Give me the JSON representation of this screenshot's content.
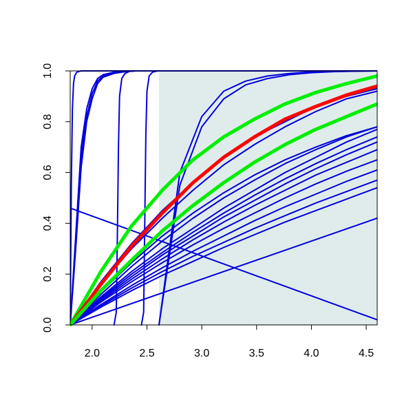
{
  "chart_data": {
    "type": "line",
    "title": "",
    "xlabel": "",
    "ylabel": "",
    "xlim": [
      1.8,
      4.6
    ],
    "ylim": [
      0.0,
      1.0
    ],
    "x_ticks": [
      2.0,
      2.5,
      3.0,
      3.5,
      4.0,
      4.5
    ],
    "x_tick_labels": [
      "2.0",
      "2.5",
      "3.0",
      "3.5",
      "4.0",
      "4.5"
    ],
    "y_ticks": [
      0.0,
      0.2,
      0.4,
      0.6,
      0.8,
      1.0
    ],
    "y_tick_labels": [
      "0.0",
      "0.2",
      "0.4",
      "0.6",
      "0.8",
      "1.0"
    ],
    "grid": false,
    "legend": "none",
    "shaded_region": {
      "x": [
        2.61,
        4.6
      ],
      "y": [
        0.0,
        1.0
      ],
      "color": "#e0ecec"
    },
    "colors": {
      "blue": "#0000dd",
      "red": "#ff0000",
      "green": "#00ee00"
    },
    "series": [
      {
        "color": "blue",
        "width": 2,
        "x": [
          1.8,
          1.81,
          1.82,
          1.83,
          1.84,
          1.86,
          1.9,
          2.0,
          4.6
        ],
        "y": [
          0.0,
          0.55,
          0.85,
          0.95,
          0.98,
          0.995,
          1.0,
          1.0,
          1.0
        ]
      },
      {
        "color": "blue",
        "width": 2,
        "x": [
          1.8,
          1.85,
          1.9,
          1.95,
          2.0,
          2.05,
          2.1,
          2.2,
          2.3,
          2.4,
          4.6
        ],
        "y": [
          0.0,
          0.35,
          0.7,
          0.85,
          0.93,
          0.97,
          0.985,
          0.995,
          1.0,
          1.0,
          1.0
        ]
      },
      {
        "color": "blue",
        "width": 2,
        "x": [
          1.8,
          1.85,
          1.9,
          1.95,
          2.0,
          2.05,
          2.1,
          2.2,
          2.3,
          2.4,
          4.6
        ],
        "y": [
          0.0,
          0.32,
          0.66,
          0.82,
          0.91,
          0.96,
          0.98,
          0.993,
          0.998,
          1.0,
          1.0
        ]
      },
      {
        "color": "blue",
        "width": 2,
        "x": [
          1.8,
          1.85,
          1.9,
          1.95,
          2.0,
          2.05,
          2.1,
          2.2,
          2.3,
          2.4,
          4.6
        ],
        "y": [
          0.0,
          0.3,
          0.62,
          0.8,
          0.89,
          0.95,
          0.975,
          0.99,
          0.997,
          1.0,
          1.0
        ]
      },
      {
        "color": "blue",
        "width": 2,
        "x": [
          2.2,
          2.22,
          2.23,
          2.24,
          2.25,
          2.27,
          2.3,
          2.35,
          4.6
        ],
        "y": [
          0.0,
          0.05,
          0.35,
          0.7,
          0.9,
          0.97,
          0.99,
          1.0,
          1.0
        ]
      },
      {
        "color": "blue",
        "width": 2,
        "x": [
          2.45,
          2.47,
          2.48,
          2.49,
          2.5,
          2.52,
          2.55,
          2.6,
          4.6
        ],
        "y": [
          0.0,
          0.05,
          0.4,
          0.75,
          0.92,
          0.98,
          0.995,
          1.0,
          1.0
        ]
      },
      {
        "color": "blue",
        "width": 2,
        "x": [
          2.61,
          2.8,
          3.0,
          3.2,
          3.4,
          3.6,
          3.8,
          4.0,
          4.2,
          4.4,
          4.6
        ],
        "y": [
          0.0,
          0.55,
          0.78,
          0.89,
          0.945,
          0.97,
          0.985,
          0.993,
          0.997,
          0.999,
          1.0
        ]
      },
      {
        "color": "blue",
        "width": 2,
        "x": [
          2.61,
          2.8,
          3.0,
          3.2,
          3.4,
          3.6,
          3.8,
          4.0,
          4.2,
          4.4,
          4.6
        ],
        "y": [
          0.0,
          0.6,
          0.82,
          0.92,
          0.96,
          0.98,
          0.99,
          0.996,
          0.998,
          0.999,
          1.0
        ]
      },
      {
        "color": "blue",
        "width": 2,
        "x": [
          1.8,
          2.08,
          2.36,
          2.64,
          2.92,
          3.2,
          3.48,
          3.76,
          4.04,
          4.32,
          4.6
        ],
        "y": [
          0.0,
          0.17,
          0.32,
          0.45,
          0.56,
          0.66,
          0.74,
          0.8,
          0.86,
          0.9,
          0.93
        ]
      },
      {
        "color": "blue",
        "width": 2,
        "x": [
          1.8,
          2.08,
          2.36,
          2.64,
          2.92,
          3.2,
          3.48,
          3.76,
          4.04,
          4.32,
          4.6
        ],
        "y": [
          0.0,
          0.16,
          0.3,
          0.42,
          0.53,
          0.63,
          0.71,
          0.78,
          0.84,
          0.89,
          0.92
        ]
      },
      {
        "color": "blue",
        "width": 2,
        "x": [
          1.8,
          2.08,
          2.36,
          2.64,
          2.92,
          3.2,
          3.48,
          3.76,
          4.04,
          4.32,
          4.6
        ],
        "y": [
          0.0,
          0.11,
          0.21,
          0.3,
          0.38,
          0.46,
          0.53,
          0.6,
          0.66,
          0.72,
          0.77
        ]
      },
      {
        "color": "blue",
        "width": 2,
        "x": [
          1.8,
          2.08,
          2.36,
          2.64,
          2.92,
          3.2,
          3.48,
          3.76,
          4.04,
          4.32,
          4.6
        ],
        "y": [
          0.0,
          0.105,
          0.2,
          0.285,
          0.365,
          0.44,
          0.51,
          0.575,
          0.635,
          0.69,
          0.74
        ]
      },
      {
        "color": "blue",
        "width": 2,
        "x": [
          1.8,
          2.08,
          2.36,
          2.64,
          2.92,
          3.2,
          3.48,
          3.76,
          4.04,
          4.32,
          4.6
        ],
        "y": [
          0.0,
          0.1,
          0.19,
          0.275,
          0.35,
          0.425,
          0.49,
          0.555,
          0.615,
          0.67,
          0.72
        ]
      },
      {
        "color": "blue",
        "width": 2,
        "x": [
          1.8,
          2.08,
          2.36,
          2.64,
          2.92,
          3.2,
          3.48,
          3.76,
          4.04,
          4.32,
          4.6
        ],
        "y": [
          0.0,
          0.095,
          0.18,
          0.26,
          0.335,
          0.405,
          0.47,
          0.53,
          0.59,
          0.64,
          0.69
        ]
      },
      {
        "color": "blue",
        "width": 2,
        "x": [
          1.8,
          2.08,
          2.36,
          2.64,
          2.92,
          3.2,
          3.48,
          3.76,
          4.04,
          4.32,
          4.6
        ],
        "y": [
          0.0,
          0.09,
          0.17,
          0.245,
          0.315,
          0.38,
          0.44,
          0.5,
          0.555,
          0.605,
          0.65
        ]
      },
      {
        "color": "blue",
        "width": 2,
        "x": [
          1.8,
          2.08,
          2.36,
          2.64,
          2.92,
          3.2,
          3.48,
          3.76,
          4.04,
          4.32,
          4.6
        ],
        "y": [
          0.0,
          0.08,
          0.155,
          0.225,
          0.29,
          0.35,
          0.41,
          0.465,
          0.515,
          0.565,
          0.61
        ]
      },
      {
        "color": "blue",
        "width": 2,
        "x": [
          1.8,
          2.08,
          2.36,
          2.64,
          2.92,
          3.2,
          3.48,
          3.76,
          4.04,
          4.32,
          4.6
        ],
        "y": [
          0.0,
          0.075,
          0.145,
          0.21,
          0.27,
          0.325,
          0.38,
          0.43,
          0.48,
          0.525,
          0.57
        ]
      },
      {
        "color": "blue",
        "width": 2,
        "x": [
          1.8,
          2.08,
          2.36,
          2.64,
          2.92,
          3.2,
          3.48,
          3.76,
          4.04,
          4.32,
          4.6
        ],
        "y": [
          0.0,
          0.07,
          0.135,
          0.195,
          0.25,
          0.305,
          0.355,
          0.405,
          0.45,
          0.495,
          0.54
        ]
      },
      {
        "color": "blue",
        "width": 2,
        "x": [
          1.8,
          2.08,
          2.36,
          2.64,
          2.92,
          3.2,
          3.48,
          3.76,
          4.04,
          4.32,
          4.6
        ],
        "y": [
          0.0,
          0.13,
          0.245,
          0.35,
          0.44,
          0.52,
          0.59,
          0.65,
          0.7,
          0.745,
          0.78
        ]
      },
      {
        "color": "blue",
        "width": 2,
        "x": [
          1.8,
          2.08,
          2.36,
          2.64,
          2.92,
          3.2,
          3.48,
          3.76,
          4.04,
          4.32,
          4.6
        ],
        "y": [
          0.0,
          0.12,
          0.23,
          0.33,
          0.42,
          0.5,
          0.57,
          0.635,
          0.69,
          0.74,
          0.78
        ]
      },
      {
        "color": "blue",
        "width": 2,
        "x": [
          1.8,
          4.6
        ],
        "y": [
          0.0,
          0.42
        ]
      },
      {
        "color": "blue",
        "width": 2,
        "x": [
          1.8,
          4.6
        ],
        "y": [
          0.46,
          0.02
        ]
      },
      {
        "color": "green",
        "width": 5,
        "x": [
          1.8,
          2.08,
          2.36,
          2.64,
          2.92,
          3.2,
          3.48,
          3.76,
          4.04,
          4.32,
          4.6
        ],
        "y": [
          0.0,
          0.21,
          0.39,
          0.53,
          0.65,
          0.74,
          0.81,
          0.87,
          0.915,
          0.95,
          0.98
        ]
      },
      {
        "color": "red",
        "width": 5,
        "x": [
          1.8,
          2.08,
          2.36,
          2.64,
          2.92,
          3.2,
          3.48,
          3.76,
          4.04,
          4.32,
          4.6
        ],
        "y": [
          0.0,
          0.16,
          0.31,
          0.44,
          0.56,
          0.66,
          0.74,
          0.81,
          0.86,
          0.905,
          0.94
        ]
      },
      {
        "color": "green",
        "width": 5,
        "x": [
          1.8,
          2.08,
          2.36,
          2.64,
          2.92,
          3.2,
          3.48,
          3.76,
          4.04,
          4.32,
          4.6
        ],
        "y": [
          0.0,
          0.135,
          0.255,
          0.37,
          0.47,
          0.56,
          0.64,
          0.71,
          0.77,
          0.82,
          0.87
        ]
      }
    ]
  }
}
